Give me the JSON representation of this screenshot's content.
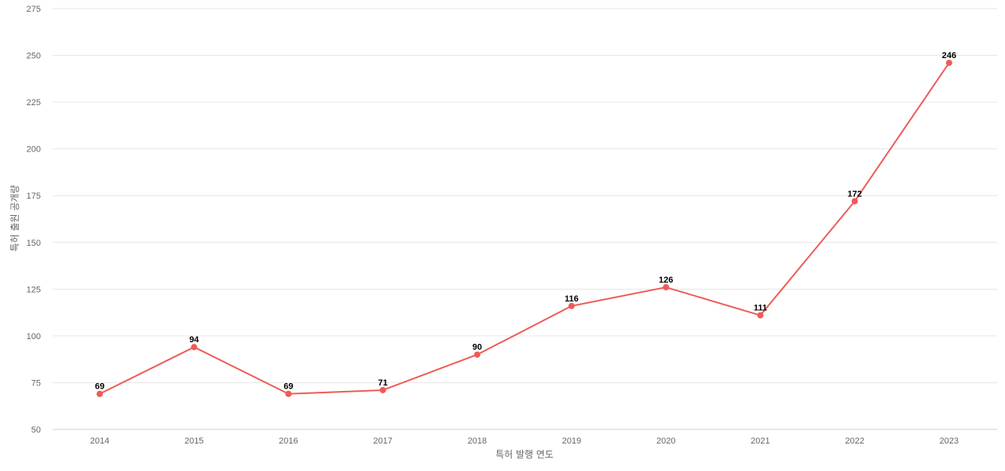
{
  "chart_data": {
    "type": "line",
    "title": "",
    "xlabel": "특허 발행 연도",
    "ylabel": "특허 출원 공개량",
    "x": [
      "2014",
      "2015",
      "2016",
      "2017",
      "2018",
      "2019",
      "2020",
      "2021",
      "2022",
      "2023"
    ],
    "series": [
      {
        "values": [
          69,
          94,
          69,
          71,
          90,
          116,
          126,
          111,
          172,
          246
        ]
      }
    ],
    "ylim": [
      50,
      275
    ],
    "yticks": [
      50,
      75,
      100,
      125,
      150,
      175,
      200,
      225,
      250,
      275
    ],
    "grid": true,
    "data_labels": true,
    "colors": {
      "line": "#ee5b57",
      "grid": "#e6e6e6",
      "tick_text": "#666666",
      "label_text": "#000000"
    }
  }
}
